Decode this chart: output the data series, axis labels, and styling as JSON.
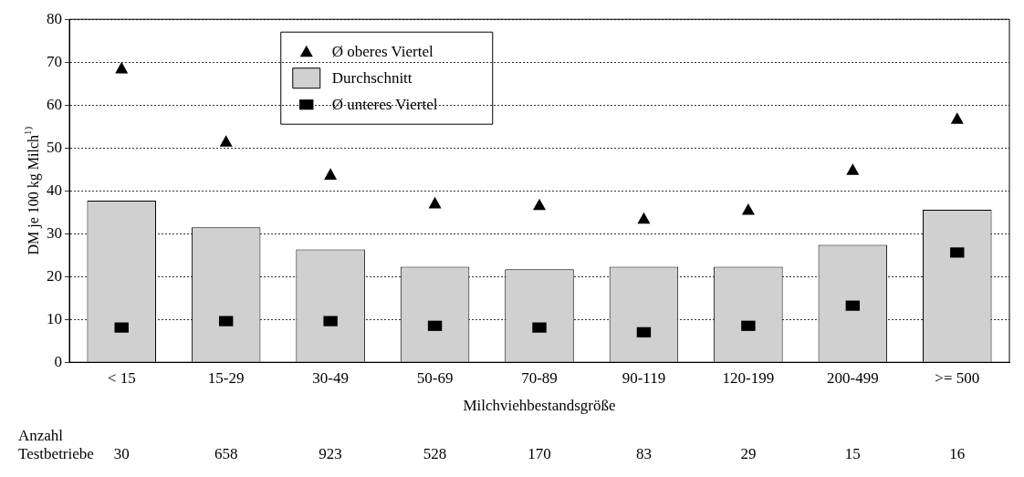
{
  "chart_data": {
    "type": "bar",
    "xlabel": "Milchviehbestandsgröße",
    "ylabel": "DM je 100 kg Milch$^{1)}$",
    "categories": [
      "< 15",
      "15-29",
      "30-49",
      "50-69",
      "70-89",
      "90-119",
      "120-199",
      "200-499",
      ">= 500"
    ],
    "series": [
      {
        "name": "Ø oberes Viertel",
        "type": "scatter",
        "marker": "triangle",
        "color": "#000000",
        "values": [
          68.6,
          51.5,
          43.8,
          37.1,
          36.7,
          33.5,
          35.6,
          44.9,
          56.8
        ]
      },
      {
        "name": "Durchschnitt",
        "color": "#d0d0d0",
        "values": [
          37.7,
          31.5,
          26.3,
          22.3,
          21.7,
          22.3,
          22.3,
          27.4,
          35.6
        ]
      },
      {
        "name": "Ø unteres Viertel",
        "type": "scatter",
        "marker": "square",
        "color": "#000000",
        "values": [
          8.1,
          9.6,
          9.6,
          8.5,
          8.1,
          7.0,
          8.5,
          13.2,
          25.6
        ]
      }
    ],
    "ylim": [
      0,
      80
    ],
    "yticks": [
      0,
      10,
      20,
      30,
      40,
      50,
      60,
      70,
      80
    ],
    "grid": "y",
    "legend": "top",
    "annotations": [
      "Anzahl",
      "Testbetriebe",
      "30",
      "658",
      "923",
      "528",
      "170",
      "83",
      "29",
      "15",
      "16"
    ]
  }
}
